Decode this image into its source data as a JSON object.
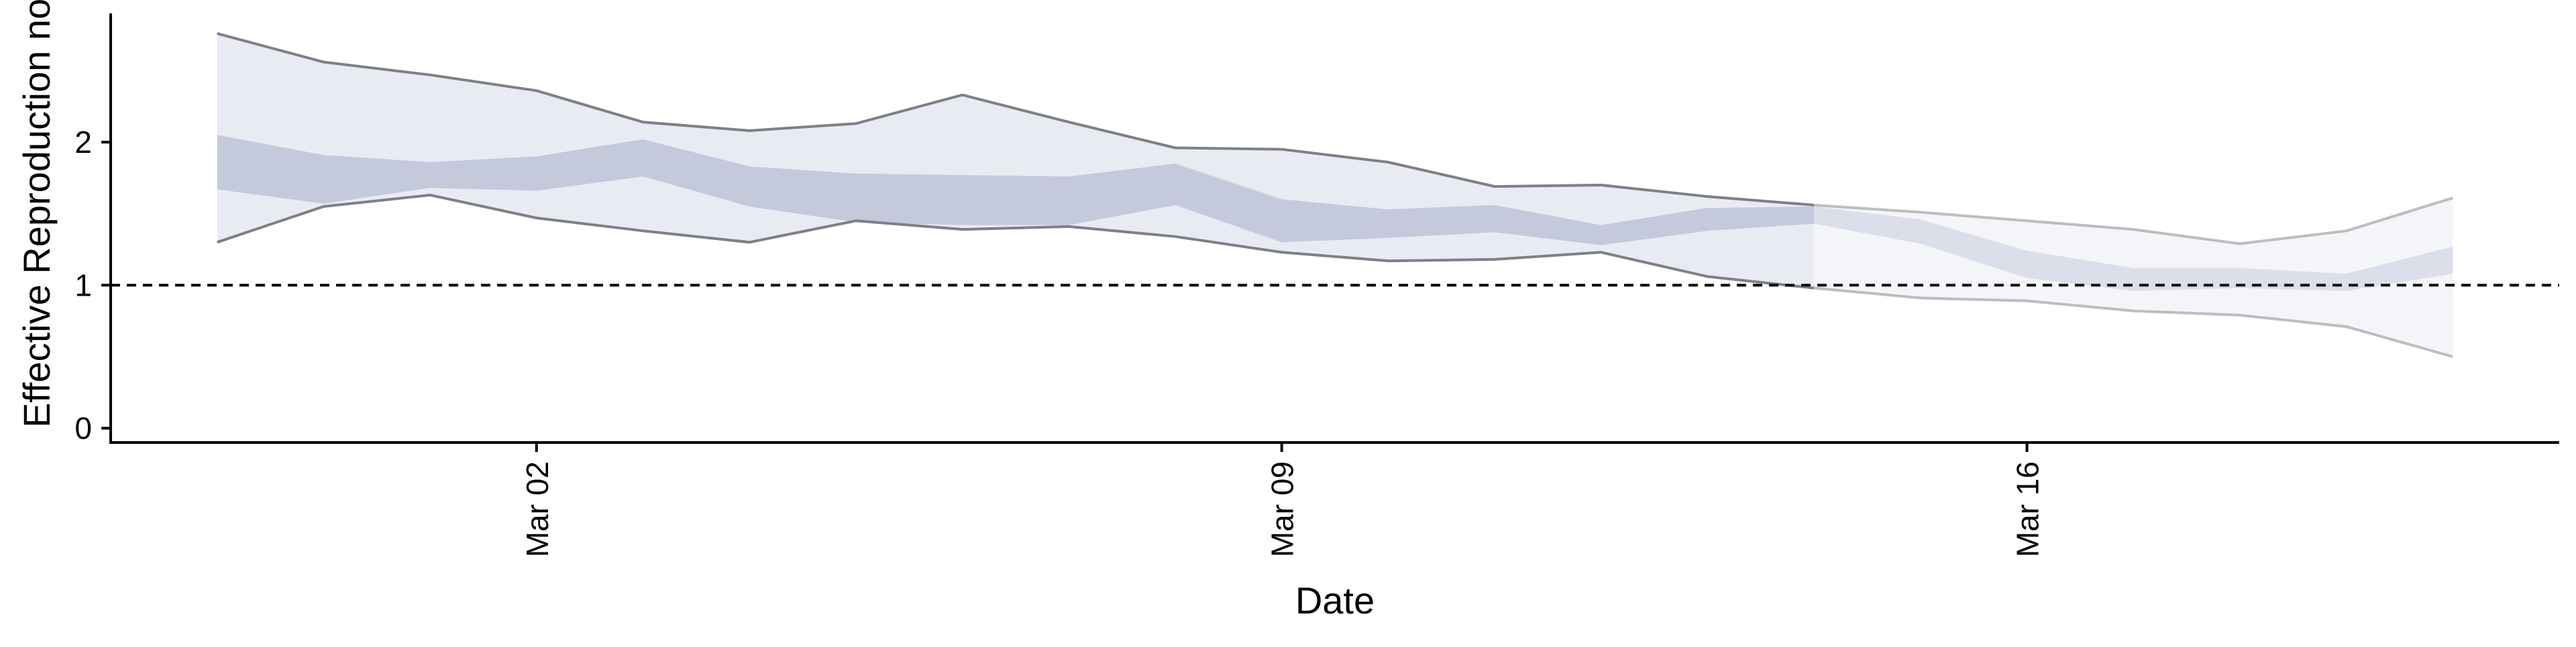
{
  "chart_data": {
    "type": "area",
    "title": "",
    "xlabel": "Date",
    "ylabel": "Effective Reproduction no",
    "x_ticks": [
      "Mar 02",
      "Mar 09",
      "Mar 16"
    ],
    "y_ticks": [
      0,
      1,
      2
    ],
    "ylim": [
      -0.1,
      2.9
    ],
    "xlim": [
      "2020-02-27",
      "2020-03-21"
    ],
    "grid": false,
    "legend": "none",
    "reference_line": {
      "y": 1,
      "style": "dashed"
    },
    "colors": {
      "outer_band": "#e9ebf2",
      "inner_band": "#c4c9dc",
      "bound_line": "#7f7f87",
      "axis": "#000000"
    },
    "series": [
      {
        "role": "estimate",
        "x": [
          "2020-02-28",
          "2020-02-29",
          "2020-03-01",
          "2020-03-02",
          "2020-03-03",
          "2020-03-04",
          "2020-03-05",
          "2020-03-06",
          "2020-03-07",
          "2020-03-08",
          "2020-03-09",
          "2020-03-10",
          "2020-03-11",
          "2020-03-12",
          "2020-03-13",
          "2020-03-14",
          "2020-03-15",
          "2020-03-16",
          "2020-03-17",
          "2020-03-18",
          "2020-03-19",
          "2020-03-20"
        ],
        "upper_90": [
          2.76,
          2.56,
          2.47,
          2.36,
          2.14,
          2.08,
          2.13,
          2.33,
          2.14,
          1.96,
          1.95,
          1.86,
          1.69,
          1.7,
          1.62,
          1.56,
          1.51,
          1.45,
          1.39,
          1.29,
          1.38,
          1.61
        ],
        "lower_90": [
          1.3,
          1.55,
          1.63,
          1.47,
          1.38,
          1.3,
          1.45,
          1.39,
          1.41,
          1.34,
          1.23,
          1.17,
          1.18,
          1.23,
          1.06,
          0.98,
          0.91,
          0.89,
          0.82,
          0.79,
          0.71,
          0.5
        ],
        "upper_50": [
          2.05,
          1.91,
          1.86,
          1.9,
          2.02,
          1.83,
          1.78,
          1.77,
          1.76,
          1.85,
          1.6,
          1.53,
          1.56,
          1.42,
          1.54,
          1.55,
          1.46,
          1.24,
          1.12,
          1.12,
          1.08,
          1.27
        ],
        "lower_50": [
          1.67,
          1.57,
          1.68,
          1.66,
          1.76,
          1.55,
          1.44,
          1.42,
          1.42,
          1.56,
          1.3,
          1.33,
          1.37,
          1.28,
          1.38,
          1.43,
          1.29,
          1.05,
          0.96,
          0.98,
          0.96,
          1.08
        ],
        "estimate_type_from_index": 15
      }
    ]
  }
}
